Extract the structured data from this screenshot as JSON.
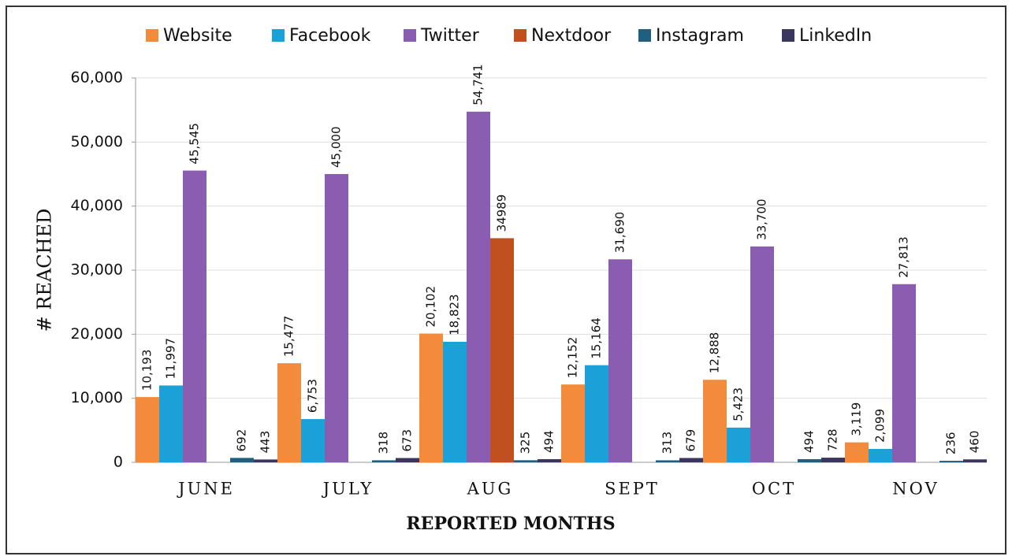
{
  "chart_data": {
    "type": "bar",
    "x_label": "REPORTED MONTHS",
    "y_label": "# REACHED",
    "categories": [
      "JUNE",
      "JULY",
      "AUG",
      "SEPT",
      "OCT",
      "NOV"
    ],
    "series": [
      {
        "name": "Website",
        "color": "#f28c3c",
        "values": [
          10193,
          15477,
          20102,
          12152,
          12888,
          3119
        ],
        "value_labels": [
          "10,193",
          "15,477",
          "20,102",
          "12,152",
          "12,888",
          "3,119"
        ]
      },
      {
        "name": "Facebook",
        "color": "#1ba1d8",
        "values": [
          11997,
          6753,
          18823,
          15164,
          5423,
          2099
        ],
        "value_labels": [
          "11,997",
          "6,753",
          "18,823",
          "15,164",
          "5,423",
          "2,099"
        ]
      },
      {
        "name": "Twitter",
        "color": "#8a5db0",
        "values": [
          45545,
          45000,
          54741,
          31690,
          33700,
          27813
        ],
        "value_labels": [
          "45,545",
          "45,000",
          "54,741",
          "31,690",
          "33,700",
          "27,813"
        ]
      },
      {
        "name": "Nextdoor",
        "color": "#c0501f",
        "values": [
          null,
          null,
          34989,
          null,
          null,
          null
        ]
      },
      {
        "name": "Instagram",
        "color": "#1f5f7f",
        "values": [
          692,
          318,
          325,
          313,
          494,
          236
        ]
      },
      {
        "name": "LinkedIn",
        "color": "#3b3660",
        "values": [
          443,
          673,
          494,
          679,
          728,
          460
        ]
      }
    ],
    "ylim": [
      0,
      60000
    ],
    "yticks": [
      0,
      {
        "value": 10000,
        "label": "10,000"
      },
      {
        "value": 20000,
        "label": "20,000"
      },
      {
        "value": 30000,
        "label": "30,000"
      },
      {
        "value": 40000,
        "label": "40,000"
      },
      {
        "value": 50000,
        "label": "50,000"
      },
      {
        "value": 60000,
        "label": "60,000"
      }
    ],
    "grid": true,
    "legend": "top"
  }
}
